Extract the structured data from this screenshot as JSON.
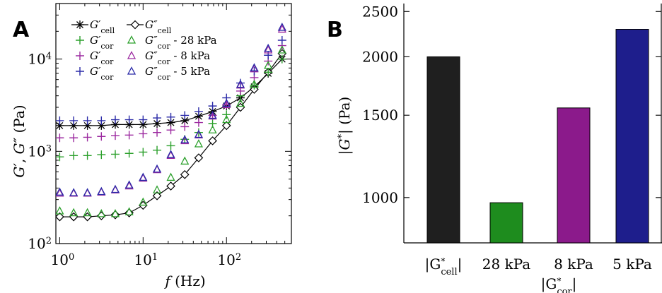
{
  "colors": {
    "cell": "#000000",
    "k28": "#2ca02c",
    "k8": "#9c2aa0",
    "k5": "#2a2aa8",
    "bar_cell": "#1f1f1f",
    "bar_28": "#1e8c1e",
    "bar_8": "#8b1a8b",
    "bar_5": "#1e1e8c"
  },
  "panel_a": {
    "label": "A",
    "ylabel": "G', G'' (Pa)",
    "xlabel": "f (Hz)",
    "x_ticks": [
      {
        "value": 1,
        "base": "10",
        "exp": "0"
      },
      {
        "value": 10,
        "base": "10",
        "exp": "1"
      },
      {
        "value": 100,
        "base": "10",
        "exp": "2"
      }
    ],
    "y_ticks": [
      {
        "value": 100,
        "base": "10",
        "exp": "2"
      },
      {
        "value": 1000,
        "base": "10",
        "exp": "3"
      },
      {
        "value": 10000,
        "base": "10",
        "exp": "4"
      }
    ],
    "legend": {
      "g1_cell": {
        "main": "G′",
        "sub": "cell"
      },
      "g2_cell": {
        "main": "G″",
        "sub": "cell"
      },
      "g1_cor": {
        "main": "G′",
        "sub": "cor"
      },
      "g2_28": {
        "main": "G″",
        "sub": "cor",
        "suffix": " - 28 kPa"
      },
      "g2_8": {
        "main": "G″",
        "sub": "cor",
        "suffix": " - 8 kPa"
      },
      "g2_5": {
        "main": "G″",
        "sub": "cor",
        "suffix": " - 5 kPa"
      }
    }
  },
  "panel_b": {
    "label": "B",
    "ylabel": "|G*| (Pa)",
    "y_ticks": [
      "2500",
      "2000",
      "1500",
      "1000"
    ],
    "x_labels": {
      "cell_pre": "|G",
      "cell_sup": "*",
      "cell_sub": "cell",
      "cell_post": "|",
      "k28": "28 kPa",
      "k8": "8 kPa",
      "k5": "5 kPa",
      "cor_pre": "|G",
      "cor_sup": "*",
      "cor_sub": "cor",
      "cor_post": "|"
    }
  },
  "chart_data": [
    {
      "type": "scatter",
      "title": "",
      "xlabel": "f (Hz)",
      "ylabel": "G', G'' (Pa)",
      "xscale": "log",
      "yscale": "log",
      "xlim": [
        0.9,
        600
      ],
      "ylim": [
        100,
        40000
      ],
      "legend_position": "top-left",
      "x": [
        1,
        1.47,
        2.15,
        3.16,
        4.64,
        6.81,
        10,
        14.7,
        21.5,
        31.6,
        46.4,
        68.1,
        100,
        147,
        215,
        316,
        464
      ],
      "series": [
        {
          "key": "g1_cell",
          "marker": "asterisk",
          "line": true,
          "values": [
            1900,
            1900,
            1900,
            1900,
            1950,
            1950,
            1950,
            2000,
            2050,
            2150,
            2400,
            2700,
            3100,
            3800,
            5000,
            7000,
            10000
          ]
        },
        {
          "key": "g2_cell",
          "marker": "diamond",
          "line": true,
          "values": [
            195,
            195,
            195,
            200,
            205,
            215,
            260,
            330,
            420,
            560,
            850,
            1300,
            1900,
            3000,
            4700,
            7200,
            11500
          ]
        },
        {
          "key": "g1_28",
          "marker": "plus",
          "values": [
            870,
            900,
            900,
            920,
            930,
            950,
            980,
            1030,
            1150,
            1350,
            1600,
            2000,
            2500,
            4000,
            5200,
            7200,
            10000
          ]
        },
        {
          "key": "g1_8",
          "marker": "plus",
          "values": [
            1400,
            1400,
            1420,
            1450,
            1480,
            1500,
            1550,
            1600,
            1700,
            1850,
            2050,
            2450,
            3200,
            4500,
            6300,
            9500,
            14000
          ]
        },
        {
          "key": "g1_5",
          "marker": "plus",
          "values": [
            2150,
            2150,
            2150,
            2150,
            2200,
            2200,
            2200,
            2300,
            2350,
            2450,
            2700,
            3100,
            3800,
            5500,
            7400,
            11000,
            16000
          ]
        },
        {
          "key": "g2_28",
          "marker": "triangle",
          "values": [
            225,
            215,
            215,
            210,
            210,
            220,
            280,
            380,
            520,
            780,
            1200,
            1700,
            2200,
            3300,
            5300,
            8500,
            12500
          ]
        },
        {
          "key": "g2_8",
          "marker": "triangle",
          "values": [
            350,
            350,
            350,
            360,
            380,
            420,
            510,
            630,
            900,
            1300,
            1500,
            2400,
            3200,
            5200,
            7800,
            12500,
            21000
          ]
        },
        {
          "key": "g2_5",
          "marker": "triangle",
          "values": [
            360,
            355,
            355,
            365,
            385,
            430,
            520,
            640,
            920,
            1330,
            1520,
            2450,
            3300,
            5300,
            8000,
            13000,
            22000
          ]
        }
      ]
    },
    {
      "type": "bar",
      "title": "",
      "xlabel": "|G*cor|",
      "ylabel": "|G*| (Pa)",
      "ylim": [
        800,
        2600
      ],
      "yscale": "log",
      "categories": [
        "|G*cell|",
        "28 kPa",
        "8 kPa",
        "5 kPa"
      ],
      "values": [
        2000,
        975,
        1555,
        2290
      ]
    }
  ]
}
